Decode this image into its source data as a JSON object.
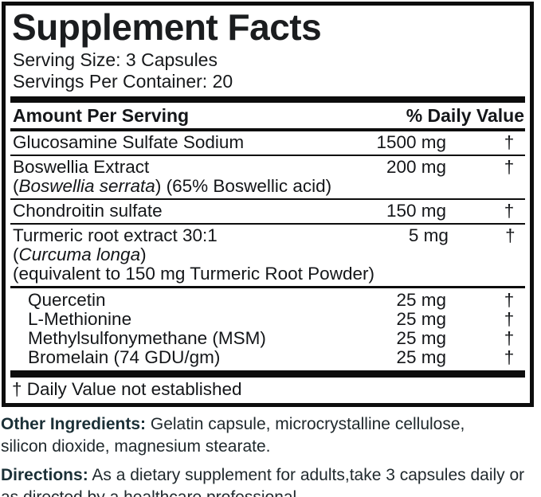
{
  "colors": {
    "border": "#0d0d0d",
    "panel_text": "#141619",
    "footer_label": "#1b3037",
    "footer_text": "#20292d",
    "background": "#ffffff"
  },
  "panel": {
    "title": "Supplement Facts",
    "serving_size": "Serving Size: 3 Capsules",
    "servings_per_container": "Servings Per Container: 20",
    "header": {
      "amount": "Amount Per Serving",
      "daily_value": "% Daily Value"
    },
    "rows": [
      {
        "lines": [
          [
            {
              "text": "Glucosamine Sulfate Sodium"
            }
          ]
        ],
        "amount": "1500 mg",
        "dv": "†",
        "sub": false,
        "group_start": false
      },
      {
        "lines": [
          [
            {
              "text": "Boswellia Extract"
            }
          ],
          [
            {
              "text": "("
            },
            {
              "text": "Boswellia serrata",
              "italic": true
            },
            {
              "text": ") (65% Boswellic acid)"
            }
          ]
        ],
        "amount": "200 mg",
        "dv": "†",
        "sub": false,
        "group_start": false
      },
      {
        "lines": [
          [
            {
              "text": "Chondroitin sulfate"
            }
          ]
        ],
        "amount": "150 mg",
        "dv": "†",
        "sub": false,
        "group_start": false
      },
      {
        "lines": [
          [
            {
              "text": "Turmeric root extract 30:1"
            }
          ],
          [
            {
              "text": "("
            },
            {
              "text": "Curcuma longa",
              "italic": true
            },
            {
              "text": ")"
            }
          ],
          [
            {
              "text": "(equivalent to 150 mg Turmeric Root Powder)"
            }
          ]
        ],
        "amount": "5 mg",
        "dv": "†",
        "sub": false,
        "group_start": false
      },
      {
        "lines": [
          [
            {
              "text": "Quercetin"
            }
          ]
        ],
        "amount": "25 mg",
        "dv": "†",
        "sub": true,
        "group_start": true
      },
      {
        "lines": [
          [
            {
              "text": "L-Methionine"
            }
          ]
        ],
        "amount": "25 mg",
        "dv": "†",
        "sub": true,
        "group_start": false
      },
      {
        "lines": [
          [
            {
              "text": "Methylsulfonymethane (MSM)"
            }
          ]
        ],
        "amount": "25 mg",
        "dv": "†",
        "sub": true,
        "group_start": false
      },
      {
        "lines": [
          [
            {
              "text": "Bromelain (74 GDU/gm)"
            }
          ]
        ],
        "amount": "25 mg",
        "dv": "†",
        "sub": true,
        "group_start": false
      }
    ],
    "footnote": "† Daily Value not established"
  },
  "footer": {
    "other_ingredients": {
      "label": "Other Ingredients:",
      "lines": [
        " Gelatin capsule, microcrystalline cellulose,",
        "silicon dioxide, magnesium stearate."
      ]
    },
    "directions": {
      "label": "Directions:",
      "lines": [
        " As a dietary supplement for adults,take 3 capsules daily or",
        "as directed by a healthcare professional."
      ]
    }
  }
}
